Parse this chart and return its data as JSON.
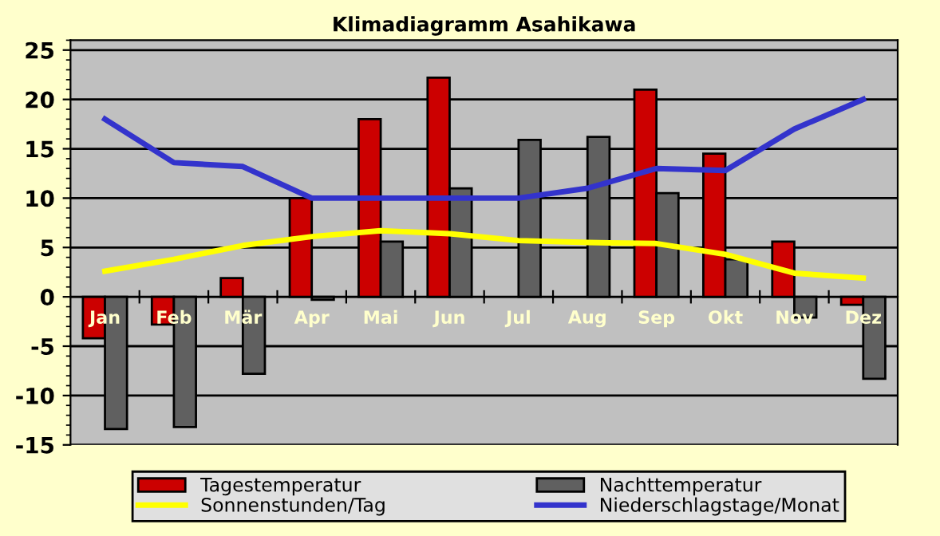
{
  "chart_data": {
    "type": "bar",
    "title": "Klimadiagramm Asahikawa",
    "categories": [
      "Jan",
      "Feb",
      "Mär",
      "Apr",
      "Mai",
      "Jun",
      "Jul",
      "Aug",
      "Sep",
      "Okt",
      "Nov",
      "Dez"
    ],
    "series": [
      {
        "name": "Tagestemperatur",
        "color": "#cc0000",
        "values": [
          -4.2,
          -2.8,
          1.9,
          10,
          18,
          22.2,
          null,
          null,
          21,
          14.5,
          5.6,
          -0.8
        ]
      },
      {
        "name": "Nachttemperatur",
        "color": "#606060",
        "values": [
          -13.4,
          -13.2,
          -7.8,
          -0.3,
          5.6,
          11,
          15.9,
          16.2,
          10.5,
          3.8,
          -2.1,
          -8.3
        ]
      },
      {
        "name": "Sonnenstunden/Tag",
        "type": "line",
        "color": "#ffff00",
        "values": [
          2.6,
          3.8,
          5.2,
          6.1,
          6.7,
          6.4,
          5.7,
          5.5,
          5.4,
          4.3,
          2.4,
          1.9
        ]
      },
      {
        "name": "Niederschlagstage/Monat",
        "type": "line",
        "color": "#3333cc",
        "values": [
          18,
          13.6,
          13.2,
          10,
          10,
          10,
          10,
          11,
          13,
          12.8,
          17,
          20
        ]
      }
    ],
    "ylim": [
      -15,
      26
    ],
    "yticks": [
      -15,
      -10,
      -5,
      0,
      5,
      10,
      15,
      20,
      25
    ],
    "grid": "y",
    "legend": "bottom"
  }
}
